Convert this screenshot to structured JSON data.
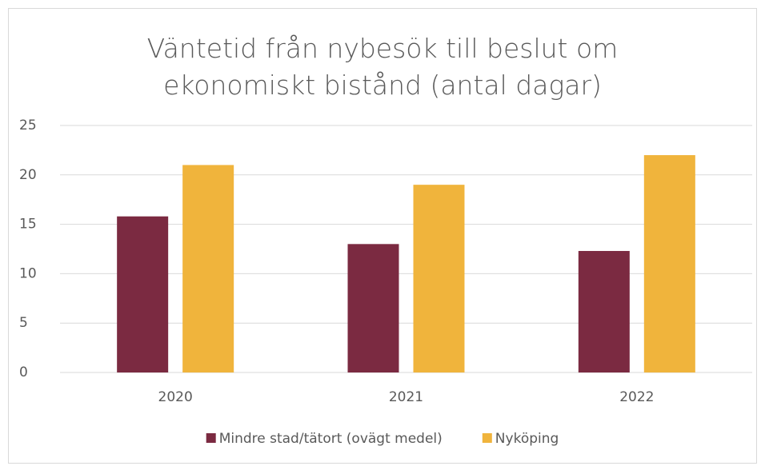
{
  "chart_data": {
    "type": "bar",
    "title": "Väntetid från nybesök till beslut om ekonomiskt bistånd (antal dagar)",
    "categories": [
      "2020",
      "2021",
      "2022"
    ],
    "series": [
      {
        "name": "Mindre stad/tätort (ovägt medel)",
        "color": "#7b2a41",
        "values": [
          15.8,
          13,
          12.3
        ]
      },
      {
        "name": "Nyköping",
        "color": "#f0b43c",
        "values": [
          21,
          19,
          22
        ]
      }
    ],
    "ylim": [
      0,
      25
    ],
    "yticks": [
      0,
      5,
      10,
      15,
      20,
      25
    ],
    "grid": true,
    "legend": "bottom"
  }
}
